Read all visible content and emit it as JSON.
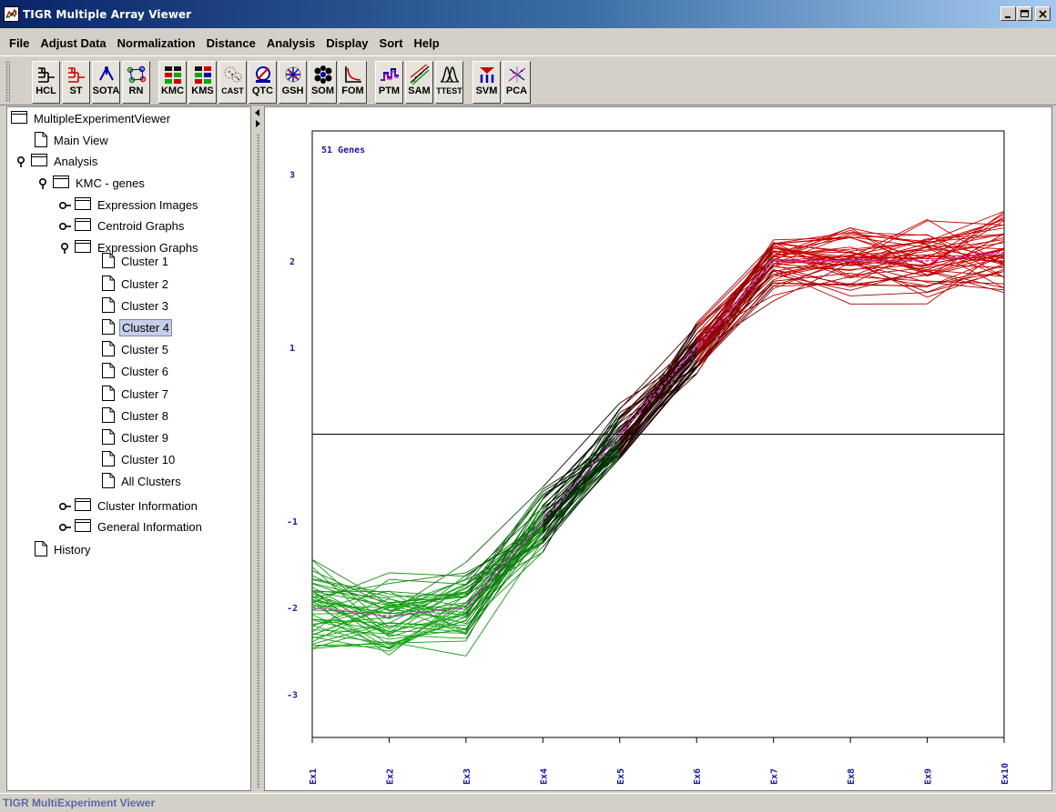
{
  "window": {
    "title": "TIGR Multiple Array Viewer",
    "controls": [
      "_",
      "□",
      "×"
    ]
  },
  "menu": [
    "File",
    "Adjust Data",
    "Normalization",
    "Distance",
    "Analysis",
    "Display",
    "Sort",
    "Help"
  ],
  "toolbar": {
    "groups": [
      [
        {
          "label": "HCL",
          "icon": "hcl-icon"
        },
        {
          "label": "ST",
          "icon": "st-icon"
        },
        {
          "label": "SOTA",
          "icon": "sota-icon"
        },
        {
          "label": "RN",
          "icon": "rn-icon"
        }
      ],
      [
        {
          "label": "KMC",
          "icon": "kmc-icon"
        },
        {
          "label": "KMS",
          "icon": "kms-icon"
        },
        {
          "label": "CAST",
          "icon": "cast-icon"
        },
        {
          "label": "QTC",
          "icon": "qtc-icon"
        },
        {
          "label": "GSH",
          "icon": "gsh-icon"
        },
        {
          "label": "SOM",
          "icon": "som-icon"
        },
        {
          "label": "FOM",
          "icon": "fom-icon"
        }
      ],
      [
        {
          "label": "PTM",
          "icon": "ptm-icon"
        },
        {
          "label": "SAM",
          "icon": "sam-icon"
        },
        {
          "label": "TTEST",
          "icon": "ttest-icon"
        }
      ],
      [
        {
          "label": "SVM",
          "icon": "svm-icon"
        },
        {
          "label": "PCA",
          "icon": "pca-icon"
        }
      ]
    ]
  },
  "tree": {
    "root": "MultipleExperimentViewer",
    "main_view": "Main View",
    "analysis": "Analysis",
    "kmc": "KMC - genes",
    "expression_images": "Expression Images",
    "centroid_graphs": "Centroid Graphs",
    "expression_graphs": "Expression Graphs",
    "clusters": [
      "Cluster 1",
      "Cluster 2",
      "Cluster 3",
      "Cluster 4",
      "Cluster 5",
      "Cluster 6",
      "Cluster 7",
      "Cluster 8",
      "Cluster 9",
      "Cluster 10",
      "All Clusters"
    ],
    "selected_cluster_index": 3,
    "cluster_information": "Cluster Information",
    "general_information": "General Information",
    "history": "History"
  },
  "chart_data": {
    "type": "line",
    "annotation": "51 Genes",
    "gene_count": 51,
    "categories": [
      "Ex1",
      "Ex2",
      "Ex3",
      "Ex4",
      "Ex5",
      "Ex6",
      "Ex7",
      "Ex8",
      "Ex9",
      "Ex10"
    ],
    "ylim": [
      -3.5,
      3.5
    ],
    "yticks": [
      3,
      2,
      1,
      -1,
      -2,
      -3
    ],
    "series": [
      {
        "values": [
          -2.0,
          -2.1,
          -2.0,
          -1.0,
          0.0,
          1.0,
          2.0,
          2.0,
          2.0,
          2.1
        ]
      }
    ],
    "gene_spread": [
      0.42,
      0.38,
      0.32,
      0.32,
      0.28,
      0.27,
      0.28,
      0.3,
      0.32,
      0.33
    ],
    "colors": {
      "low": "#14a014",
      "mid": "#000000",
      "high": "#c80000",
      "centroid": "#cc33cc",
      "axis_text": "#1a1aa0"
    },
    "grid": false,
    "zero_line": true,
    "legend": "none"
  },
  "status": "TIGR MultiExperiment Viewer"
}
